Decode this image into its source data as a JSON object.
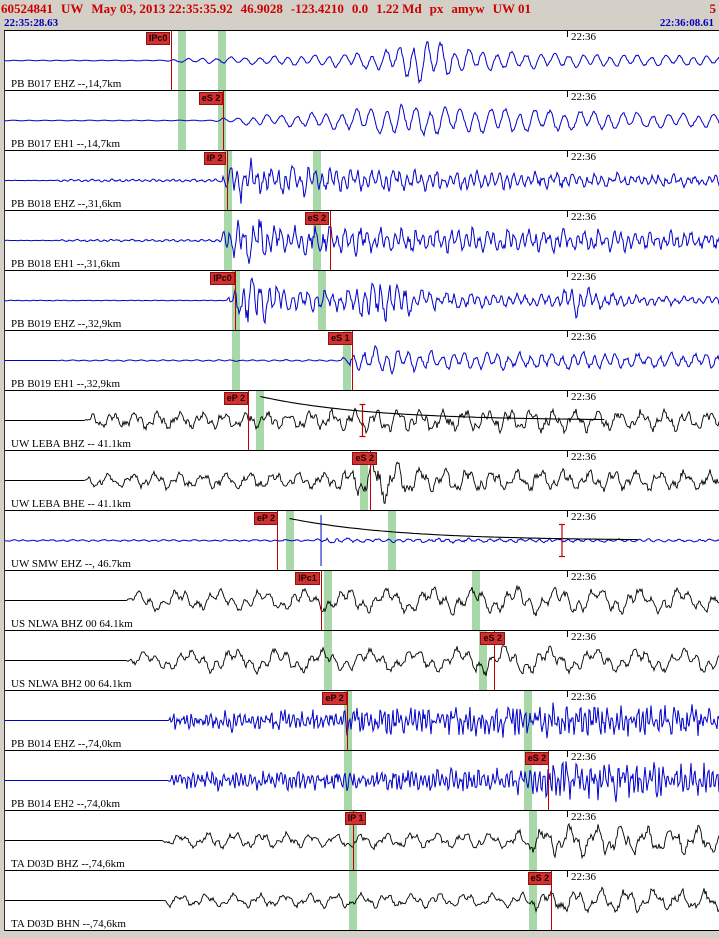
{
  "header": {
    "event_id": "60524841",
    "network": "UW",
    "origin_time": "May 03, 2013 22:35:35.92",
    "latitude": "46.9028",
    "longitude": "-123.4210",
    "depth": "0.0",
    "magnitude": "1.22 Md",
    "status": "px",
    "analyst": "amyw",
    "region": "UW 01",
    "trailing": "5"
  },
  "timebar": {
    "start": "22:35:28.63",
    "end": "22:36:08.61"
  },
  "minute": {
    "label": "22:36",
    "x": 0.786
  },
  "colors": {
    "header_text": "#cc0000",
    "timestamp_text": "#0000bb",
    "trace_blue": "#0000cc",
    "trace_black": "#000000",
    "pick_flag_bg": "#d03030",
    "pick_line": "#c00000",
    "pick_window_green": "#a8d8a8",
    "window_background": "#d4d0c8"
  },
  "traces": [
    {
      "station": "PB B017 EHZ --,14,7km",
      "color": "#0000cc",
      "pick": {
        "label": "IPc0",
        "label_x": 0.197,
        "line_x": 0.232
      },
      "green_bars": [
        0.247,
        0.303
      ],
      "waveform": {
        "seed": 11,
        "wavelength1": 14,
        "wavelength2": 40,
        "mix": 0.25,
        "noise": 0.12,
        "envelope": [
          [
            0,
            0.4
          ],
          [
            0.225,
            0.4
          ],
          [
            0.235,
            1.5
          ],
          [
            0.28,
            3
          ],
          [
            0.34,
            4
          ],
          [
            0.42,
            5
          ],
          [
            0.5,
            8
          ],
          [
            0.55,
            14
          ],
          [
            0.575,
            24
          ],
          [
            0.6,
            20
          ],
          [
            0.64,
            13
          ],
          [
            0.7,
            9
          ],
          [
            0.78,
            7
          ],
          [
            0.88,
            6
          ],
          [
            1,
            5
          ]
        ]
      }
    },
    {
      "station": "PB B017 EH1 --,14,7km",
      "color": "#0000cc",
      "pick": {
        "label": "eS 2",
        "label_x": 0.271,
        "line_x": 0.305
      },
      "green_bars": [
        0.247,
        0.303
      ],
      "waveform": {
        "seed": 22,
        "wavelength1": 15,
        "wavelength2": 45,
        "mix": 0.25,
        "noise": 0.12,
        "envelope": [
          [
            0,
            0.4
          ],
          [
            0.29,
            0.4
          ],
          [
            0.3,
            2
          ],
          [
            0.35,
            5
          ],
          [
            0.42,
            7
          ],
          [
            0.5,
            12
          ],
          [
            0.55,
            16
          ],
          [
            0.6,
            15
          ],
          [
            0.66,
            13
          ],
          [
            0.72,
            12
          ],
          [
            0.8,
            10
          ],
          [
            0.9,
            8
          ],
          [
            1,
            7
          ]
        ]
      }
    },
    {
      "station": "PB B018 EHZ --,31,6km",
      "color": "#0000cc",
      "pick": {
        "label": "IP 2",
        "label_x": 0.278,
        "line_x": 0.311
      },
      "green_bars": [
        0.312,
        0.436
      ],
      "waveform": {
        "seed": 33,
        "wavelength1": 7,
        "wavelength2": 20,
        "mix": 0.35,
        "noise": 0.35,
        "envelope": [
          [
            0,
            0.2
          ],
          [
            0.07,
            0.2
          ],
          [
            0.08,
            1.2
          ],
          [
            0.3,
            1.4
          ],
          [
            0.315,
            16
          ],
          [
            0.335,
            21
          ],
          [
            0.37,
            12
          ],
          [
            0.42,
            13
          ],
          [
            0.47,
            10
          ],
          [
            0.53,
            11
          ],
          [
            0.6,
            9
          ],
          [
            0.68,
            8
          ],
          [
            0.78,
            7
          ],
          [
            0.88,
            6
          ],
          [
            1,
            5
          ]
        ]
      }
    },
    {
      "station": "PB B018 EH1 --,31,6km",
      "color": "#0000cc",
      "pick": {
        "label": "eS 2",
        "label_x": 0.419,
        "line_x": 0.454
      },
      "green_bars": [
        0.312,
        0.436
      ],
      "waveform": {
        "seed": 44,
        "wavelength1": 7,
        "wavelength2": 18,
        "mix": 0.4,
        "noise": 0.35,
        "envelope": [
          [
            0,
            0.2
          ],
          [
            0.07,
            0.2
          ],
          [
            0.08,
            1
          ],
          [
            0.3,
            1.2
          ],
          [
            0.315,
            18
          ],
          [
            0.34,
            23
          ],
          [
            0.4,
            11
          ],
          [
            0.435,
            15
          ],
          [
            0.48,
            13
          ],
          [
            0.56,
            12
          ],
          [
            0.66,
            12
          ],
          [
            0.76,
            11
          ],
          [
            0.86,
            10
          ],
          [
            1,
            8
          ]
        ]
      }
    },
    {
      "station": "PB B019 EHZ --,32,9km",
      "color": "#0000cc",
      "pick": {
        "label": "IPc0",
        "label_x": 0.287,
        "line_x": 0.322
      },
      "green_bars": [
        0.323,
        0.443
      ],
      "waveform": {
        "seed": 55,
        "wavelength1": 8,
        "wavelength2": 24,
        "mix": 0.35,
        "noise": 0.3,
        "envelope": [
          [
            0,
            0.3
          ],
          [
            0.31,
            0.3
          ],
          [
            0.325,
            20
          ],
          [
            0.345,
            25
          ],
          [
            0.4,
            12
          ],
          [
            0.46,
            9
          ],
          [
            0.5,
            16
          ],
          [
            0.53,
            21
          ],
          [
            0.58,
            11
          ],
          [
            0.65,
            7
          ],
          [
            0.72,
            6
          ],
          [
            0.77,
            6
          ],
          [
            0.8,
            15
          ],
          [
            0.83,
            8
          ],
          [
            0.9,
            5
          ],
          [
            1,
            4
          ]
        ]
      }
    },
    {
      "station": "PB B019 EH1 --,32,9km",
      "color": "#0000cc",
      "pick": {
        "label": "eS 1",
        "label_x": 0.452,
        "line_x": 0.486
      },
      "green_bars": [
        0.323,
        0.478
      ],
      "waveform": {
        "seed": 66,
        "wavelength1": 11,
        "wavelength2": 30,
        "mix": 0.3,
        "noise": 0.25,
        "envelope": [
          [
            0,
            0
          ],
          [
            0.07,
            0
          ],
          [
            0.08,
            0.6
          ],
          [
            0.47,
            0.8
          ],
          [
            0.485,
            10
          ],
          [
            0.51,
            14
          ],
          [
            0.56,
            10
          ],
          [
            0.63,
            9
          ],
          [
            0.72,
            8
          ],
          [
            0.82,
            8
          ],
          [
            0.92,
            7
          ],
          [
            1,
            7
          ]
        ]
      }
    },
    {
      "station": "UW LEBA BHZ -- 41.1km",
      "color": "#000000",
      "pick": {
        "label": "eP 2",
        "label_x": 0.306,
        "line_x": 0.34
      },
      "green_bars": [
        0.357
      ],
      "decay_curve": {
        "start": 0.357,
        "end": 0.84,
        "amp": 24
      },
      "red_marker": 0.5,
      "waveform": {
        "seed": 77,
        "wavelength1": 22,
        "wavelength2": 8,
        "mix": 0.35,
        "noise": 0.3,
        "envelope": [
          [
            0,
            0
          ],
          [
            0.11,
            0
          ],
          [
            0.12,
            6
          ],
          [
            0.2,
            9
          ],
          [
            0.3,
            8
          ],
          [
            0.4,
            8
          ],
          [
            0.5,
            11
          ],
          [
            0.58,
            12
          ],
          [
            0.66,
            11
          ],
          [
            0.75,
            11
          ],
          [
            0.85,
            10
          ],
          [
            1,
            9
          ]
        ]
      }
    },
    {
      "station": "UW LEBA BHE -- 41.1km",
      "color": "#000000",
      "pick": {
        "label": "eS 2",
        "label_x": 0.486,
        "line_x": 0.511
      },
      "green_bars": [
        0.502
      ],
      "waveform": {
        "seed": 88,
        "wavelength1": 24,
        "wavelength2": 9,
        "mix": 0.35,
        "noise": 0.3,
        "envelope": [
          [
            0,
            0
          ],
          [
            0.11,
            0
          ],
          [
            0.12,
            7
          ],
          [
            0.3,
            8
          ],
          [
            0.45,
            8
          ],
          [
            0.5,
            15
          ],
          [
            0.53,
            20
          ],
          [
            0.57,
            13
          ],
          [
            0.65,
            11
          ],
          [
            0.75,
            10
          ],
          [
            0.85,
            10
          ],
          [
            1,
            9
          ]
        ]
      }
    },
    {
      "station": "UW SMW EHZ --, 46.7km",
      "color": "#0000cc",
      "pick": {
        "label": "eP 2",
        "label_x": 0.348,
        "line_x": 0.381
      },
      "green_bars": [
        0.398,
        0.541
      ],
      "decay_curve": {
        "start": 0.398,
        "end": 0.89,
        "amp": 22
      },
      "blue_spike": 0.442,
      "red_marker": 0.779,
      "waveform": {
        "seed": 99,
        "wavelength1": 10,
        "wavelength2": 30,
        "mix": 0.3,
        "noise": 0.4,
        "envelope": [
          [
            0,
            0.8
          ],
          [
            0.43,
            0.8
          ],
          [
            0.45,
            2.5
          ],
          [
            0.52,
            1.5
          ],
          [
            0.6,
            2
          ],
          [
            0.7,
            1.8
          ],
          [
            0.85,
            1.5
          ],
          [
            1,
            1.2
          ]
        ]
      }
    },
    {
      "station": "US NLWA BHZ 00 64.1km",
      "color": "#000000",
      "pick": {
        "label": "IPc1",
        "label_x": 0.406,
        "line_x": 0.442
      },
      "green_bars": [
        0.452,
        0.659
      ],
      "waveform": {
        "seed": 110,
        "wavelength1": 42,
        "wavelength2": 12,
        "mix": 0.4,
        "noise": 0.2,
        "envelope": [
          [
            0,
            0
          ],
          [
            0.17,
            0
          ],
          [
            0.18,
            9
          ],
          [
            0.25,
            11
          ],
          [
            0.38,
            10
          ],
          [
            0.45,
            12
          ],
          [
            0.55,
            12
          ],
          [
            0.65,
            13
          ],
          [
            0.75,
            14
          ],
          [
            0.85,
            13
          ],
          [
            1,
            12
          ]
        ]
      }
    },
    {
      "station": "US NLWA BH2 00 64.1km",
      "color": "#000000",
      "pick": {
        "label": "eS 2",
        "label_x": 0.665,
        "line_x": 0.684
      },
      "green_bars": [
        0.452,
        0.669
      ],
      "waveform": {
        "seed": 121,
        "wavelength1": 45,
        "wavelength2": 12,
        "mix": 0.4,
        "noise": 0.2,
        "envelope": [
          [
            0,
            0
          ],
          [
            0.17,
            0
          ],
          [
            0.18,
            9
          ],
          [
            0.3,
            12
          ],
          [
            0.45,
            11
          ],
          [
            0.58,
            11
          ],
          [
            0.65,
            13
          ],
          [
            0.7,
            16
          ],
          [
            0.78,
            13
          ],
          [
            0.88,
            12
          ],
          [
            1,
            12
          ]
        ]
      }
    },
    {
      "station": "PB B014 EHZ --,74,0km",
      "color": "#0000cc",
      "pick": {
        "label": "eP 2",
        "label_x": 0.444,
        "line_x": 0.478
      },
      "green_bars": [
        0.48,
        0.731
      ],
      "waveform": {
        "seed": 132,
        "wavelength1": 4.5,
        "wavelength2": 14,
        "mix": 0.3,
        "noise": 0.7,
        "envelope": [
          [
            0,
            0
          ],
          [
            0.228,
            0
          ],
          [
            0.235,
            7
          ],
          [
            0.4,
            8
          ],
          [
            0.48,
            9
          ],
          [
            0.55,
            10
          ],
          [
            0.65,
            10
          ],
          [
            0.72,
            12
          ],
          [
            0.8,
            12
          ],
          [
            0.9,
            11
          ],
          [
            1,
            10
          ]
        ]
      }
    },
    {
      "station": "PB B014 EH2 --,74,0km",
      "color": "#0000cc",
      "pick": {
        "label": "eS 2",
        "label_x": 0.727,
        "line_x": 0.76
      },
      "green_bars": [
        0.48,
        0.731
      ],
      "waveform": {
        "seed": 143,
        "wavelength1": 4.5,
        "wavelength2": 14,
        "mix": 0.3,
        "noise": 0.7,
        "envelope": [
          [
            0,
            0
          ],
          [
            0.228,
            0
          ],
          [
            0.235,
            7
          ],
          [
            0.45,
            7
          ],
          [
            0.6,
            8
          ],
          [
            0.7,
            8
          ],
          [
            0.74,
            12
          ],
          [
            0.82,
            14
          ],
          [
            0.92,
            13
          ],
          [
            1,
            12
          ]
        ]
      }
    },
    {
      "station": "TA D03D BHZ --,74,6km",
      "color": "#000000",
      "pick": {
        "label": "IP 1",
        "label_x": 0.475,
        "line_x": 0.487
      },
      "green_bars": [
        0.487,
        0.738
      ],
      "waveform": {
        "seed": 154,
        "wavelength1": 26,
        "wavelength2": 10,
        "mix": 0.35,
        "noise": 0.25,
        "envelope": [
          [
            0,
            0
          ],
          [
            0.22,
            0
          ],
          [
            0.23,
            6
          ],
          [
            0.3,
            8
          ],
          [
            0.45,
            7
          ],
          [
            0.6,
            8
          ],
          [
            0.7,
            8
          ],
          [
            0.745,
            13
          ],
          [
            0.8,
            16
          ],
          [
            0.88,
            14
          ],
          [
            1,
            13
          ]
        ]
      }
    },
    {
      "station": "TA D03D BHN --,74,6km",
      "color": "#000000",
      "pick": {
        "label": "eS 2",
        "label_x": 0.731,
        "line_x": 0.764
      },
      "green_bars": [
        0.487,
        0.738
      ],
      "waveform": {
        "seed": 165,
        "wavelength1": 26,
        "wavelength2": 10,
        "mix": 0.35,
        "noise": 0.25,
        "envelope": [
          [
            0,
            0
          ],
          [
            0.22,
            0
          ],
          [
            0.23,
            6
          ],
          [
            0.4,
            7
          ],
          [
            0.6,
            7
          ],
          [
            0.72,
            7
          ],
          [
            0.76,
            11
          ],
          [
            0.84,
            12
          ],
          [
            0.93,
            11
          ],
          [
            1,
            10
          ]
        ]
      }
    }
  ]
}
